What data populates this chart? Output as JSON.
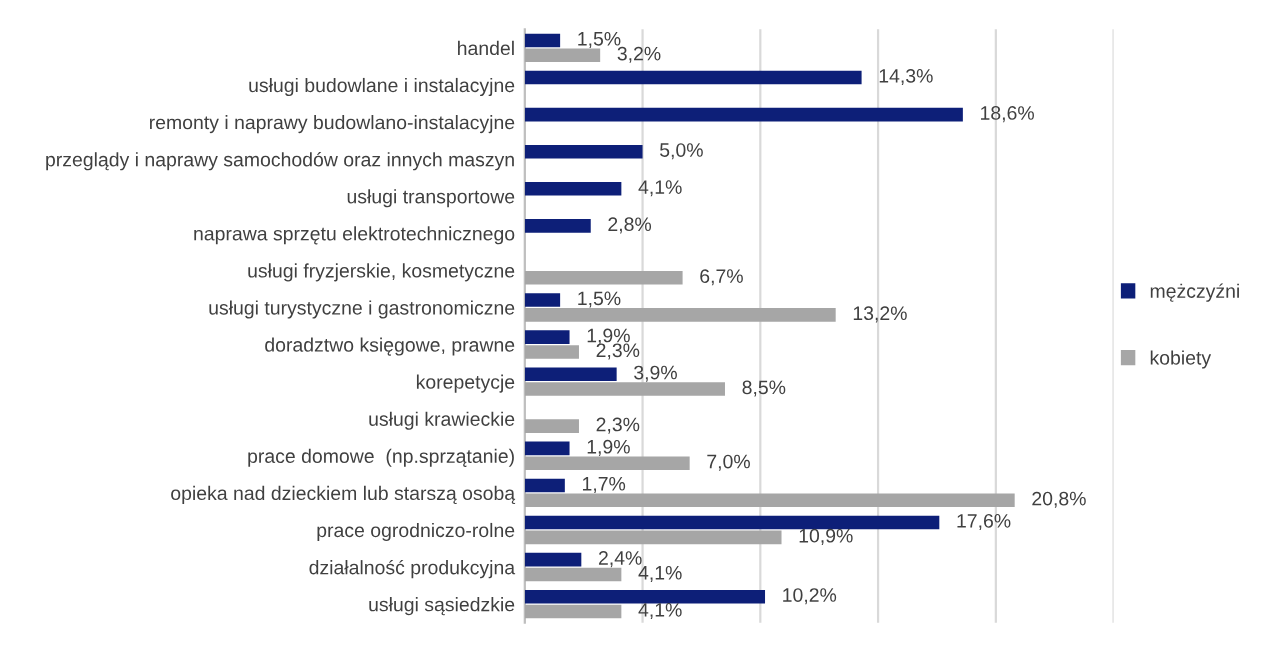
{
  "chart_data": {
    "type": "bar",
    "orientation": "horizontal",
    "categories": [
      "handel",
      "usługi budowlane i instalacyjne",
      "remonty i naprawy budowlano-instalacyjne",
      "przeglądy i naprawy samochodów oraz innych maszyn",
      "usługi transportowe",
      "naprawa sprzętu elektrotechnicznego",
      "usługi fryzjerskie, kosmetyczne",
      "usługi turystyczne i gastronomiczne",
      "doradztwo księgowe, prawne",
      "korepetycje",
      "usługi krawieckie",
      "prace domowe  (np.sprzątanie)",
      "opieka nad dzieckiem lub starszą osobą",
      "prace ogrodniczo-rolne",
      "działalność produkcyjna",
      "usługi sąsiedzkie"
    ],
    "series": [
      {
        "name": "mężczyźni",
        "color": "#0d1f78",
        "values": [
          1.5,
          14.3,
          18.6,
          5.0,
          4.1,
          2.8,
          null,
          1.5,
          1.9,
          3.9,
          null,
          1.9,
          1.7,
          17.6,
          2.4,
          10.2
        ],
        "value_labels": [
          "1,5%",
          "14,3%",
          "18,6%",
          "5,0%",
          "4,1%",
          "2,8%",
          null,
          "1,5%",
          "1,9%",
          "3,9%",
          null,
          "1,9%",
          "1,7%",
          "17,6%",
          "2,4%",
          "10,2%"
        ]
      },
      {
        "name": "kobiety",
        "color": "#a6a6a6",
        "values": [
          3.2,
          null,
          null,
          null,
          null,
          null,
          6.7,
          13.2,
          2.3,
          8.5,
          2.3,
          7.0,
          20.8,
          10.9,
          4.1,
          4.1
        ],
        "value_labels": [
          "3,2%",
          null,
          null,
          null,
          null,
          null,
          "6,7%",
          "13,2%",
          "2,3%",
          "8,5%",
          "2,3%",
          "7,0%",
          "20,8%",
          "10,9%",
          "4,1%",
          "4,1%"
        ]
      }
    ],
    "xlim": [
      0,
      25
    ],
    "xticks": [
      {
        "value": 0,
        "label": null
      },
      {
        "value": 5,
        "label": null
      },
      {
        "value": 10,
        "label": null
      },
      {
        "value": 15,
        "label": null
      },
      {
        "value": 20,
        "label": null
      },
      {
        "value": 25,
        "label": null
      }
    ],
    "grid": "x",
    "legend": "right",
    "tick_labels": "y"
  }
}
